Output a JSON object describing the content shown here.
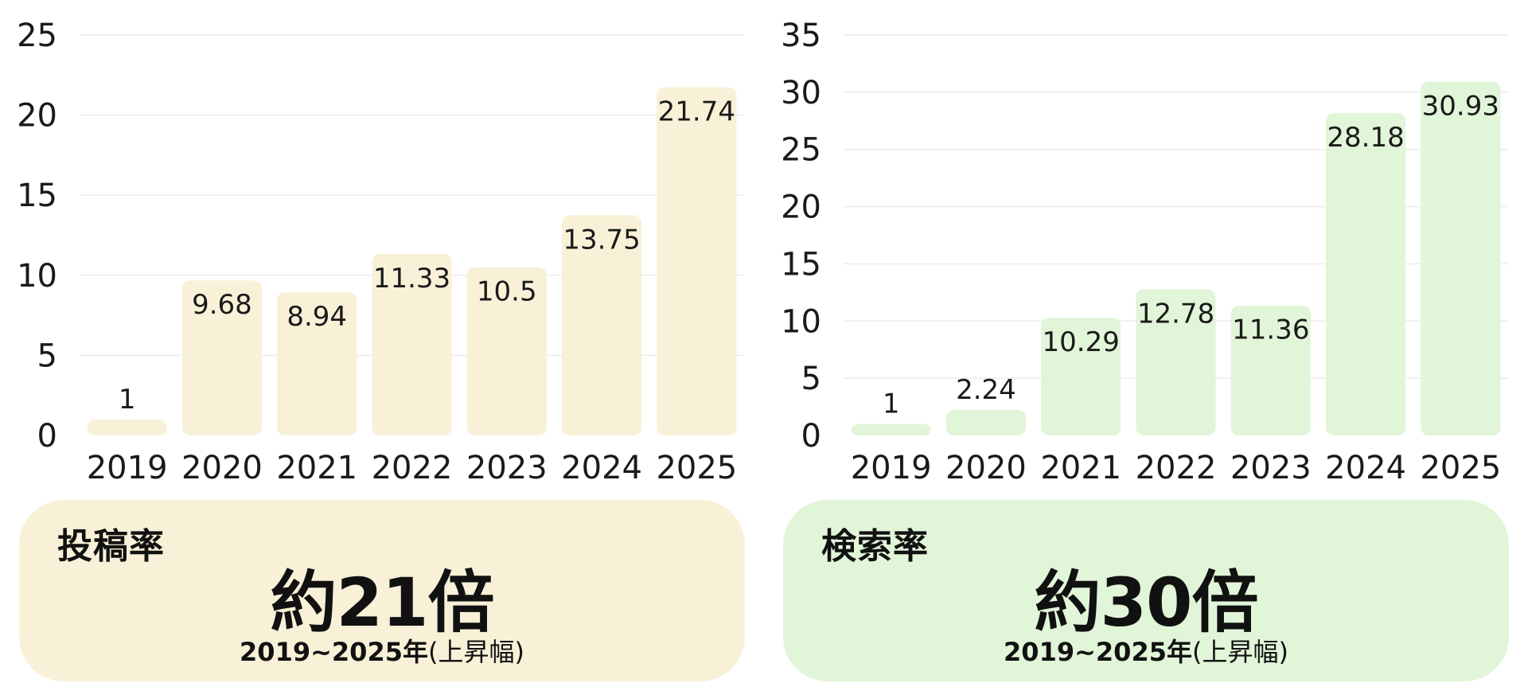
{
  "chart_data": [
    {
      "type": "bar",
      "categories": [
        "2019",
        "2020",
        "2021",
        "2022",
        "2023",
        "2024",
        "2025"
      ],
      "values": [
        1,
        9.68,
        8.94,
        11.33,
        10.5,
        13.75,
        21.74
      ],
      "data_labels": [
        "1",
        "9.68",
        "8.94",
        "11.33",
        "10.5",
        "13.75",
        "21.74"
      ],
      "yticks": [
        0,
        5,
        10,
        15,
        20,
        25
      ],
      "ylim": [
        0,
        25
      ],
      "grid": true,
      "bar_color": "#f8f1d8",
      "title": "",
      "xlabel": "",
      "ylabel": ""
    },
    {
      "type": "bar",
      "categories": [
        "2019",
        "2020",
        "2021",
        "2022",
        "2023",
        "2024",
        "2025"
      ],
      "values": [
        1,
        2.24,
        10.29,
        12.78,
        11.36,
        28.18,
        30.93
      ],
      "data_labels": [
        "1",
        "2.24",
        "10.29",
        "12.78",
        "11.36",
        "28.18",
        "30.93"
      ],
      "yticks": [
        0,
        5,
        10,
        15,
        20,
        25,
        30,
        35
      ],
      "ylim": [
        0,
        35
      ],
      "grid": true,
      "bar_color": "#e1f5d8",
      "title": "",
      "xlabel": "",
      "ylabel": ""
    }
  ],
  "summaries": [
    {
      "label": "投稿率",
      "headline": "約21倍",
      "period": "2019~2025年",
      "period_note": "(上昇幅)",
      "bg_color": "#f8f1d8"
    },
    {
      "label": "検索率",
      "headline": "約30倍",
      "period": "2019~2025年",
      "period_note": "(上昇幅)",
      "bg_color": "#e1f5d8"
    }
  ]
}
